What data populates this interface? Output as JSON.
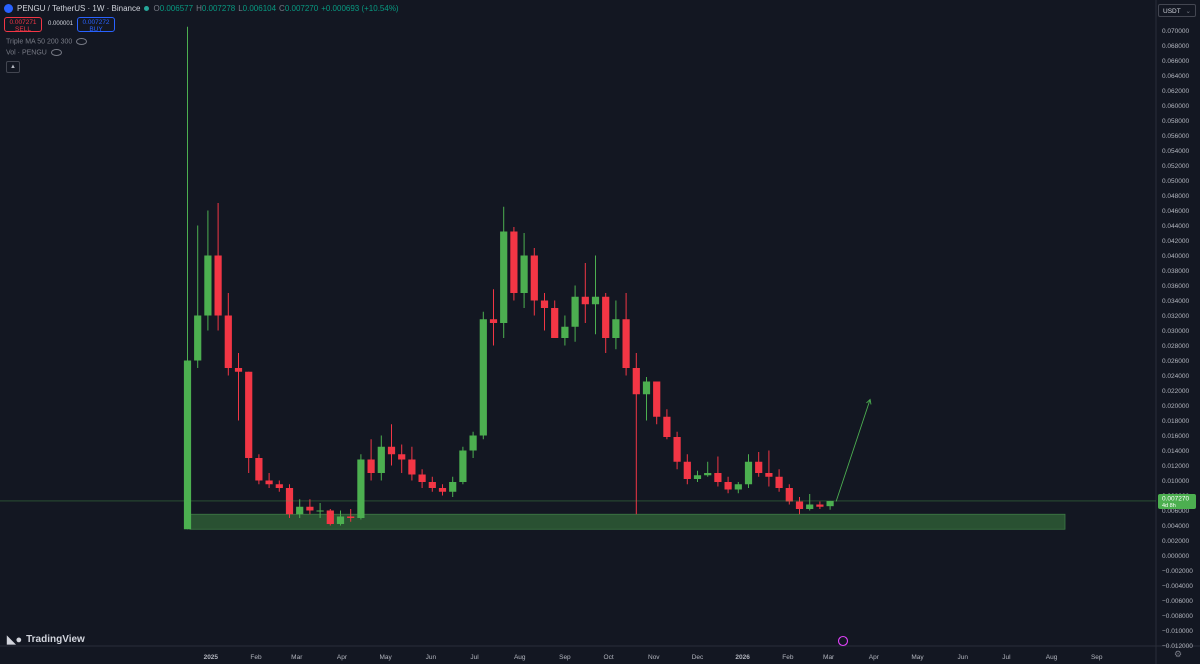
{
  "header": {
    "symbol": "PENGU / TetherUS · 1W · Binance",
    "o_label": "O",
    "o": "0.006577",
    "h_label": "H",
    "h": "0.007278",
    "l_label": "L",
    "l": "0.006104",
    "c_label": "C",
    "c": "0.007270",
    "change": "+0.000693 (+10.54%)"
  },
  "trade": {
    "sell_price": "0.007271",
    "sell_label": "SELL",
    "spread": "0.000001",
    "buy_price": "0.007272",
    "buy_label": "BUY"
  },
  "indicators": {
    "ma": "Triple MA 50 200 300",
    "vol": "Vol · PENGU"
  },
  "currency": "USDT",
  "brand": "TradingView",
  "price_tag": {
    "price": "0.007270",
    "countdown": "4d 8h"
  },
  "colors": {
    "up": "#4caf50",
    "down": "#f23645",
    "zone": "#2e5c35",
    "background": "#131722"
  },
  "chart_data": {
    "type": "candlestick",
    "interval": "1W",
    "ylim": [
      -0.012,
      0.071
    ],
    "y_ticks": [
      "0.070000",
      "0.068000",
      "0.066000",
      "0.064000",
      "0.062000",
      "0.060000",
      "0.058000",
      "0.056000",
      "0.054000",
      "0.052000",
      "0.050000",
      "0.048000",
      "0.046000",
      "0.044000",
      "0.042000",
      "0.040000",
      "0.038000",
      "0.036000",
      "0.034000",
      "0.032000",
      "0.030000",
      "0.028000",
      "0.026000",
      "0.024000",
      "0.022000",
      "0.020000",
      "0.018000",
      "0.016000",
      "0.014000",
      "0.012000",
      "0.010000",
      "0.008000",
      "0.006000",
      "0.004000",
      "0.002000",
      "0.000000",
      "−0.002000",
      "−0.004000",
      "−0.006000",
      "−0.008000",
      "−0.010000",
      "−0.012000"
    ],
    "x_ticks": [
      "2025",
      "Feb",
      "Mar",
      "Apr",
      "May",
      "Jun",
      "Jul",
      "Aug",
      "Sep",
      "Oct",
      "Nov",
      "Dec",
      "2026",
      "Feb",
      "Mar",
      "Apr",
      "May",
      "Jun",
      "Jul",
      "Aug",
      "Sep"
    ],
    "x_start": "2024-12-16",
    "x_end": "2026-09-28",
    "candles": [
      {
        "o": 0.0035,
        "h": 0.0705,
        "l": 0.0035,
        "c": 0.026
      },
      {
        "o": 0.026,
        "h": 0.044,
        "l": 0.025,
        "c": 0.032
      },
      {
        "o": 0.032,
        "h": 0.046,
        "l": 0.03,
        "c": 0.04
      },
      {
        "o": 0.04,
        "h": 0.047,
        "l": 0.03,
        "c": 0.032
      },
      {
        "o": 0.032,
        "h": 0.035,
        "l": 0.024,
        "c": 0.025
      },
      {
        "o": 0.025,
        "h": 0.027,
        "l": 0.018,
        "c": 0.0245
      },
      {
        "o": 0.0245,
        "h": 0.0245,
        "l": 0.011,
        "c": 0.013
      },
      {
        "o": 0.013,
        "h": 0.0135,
        "l": 0.0095,
        "c": 0.01
      },
      {
        "o": 0.01,
        "h": 0.011,
        "l": 0.009,
        "c": 0.0095
      },
      {
        "o": 0.0095,
        "h": 0.01,
        "l": 0.0085,
        "c": 0.009
      },
      {
        "o": 0.009,
        "h": 0.0095,
        "l": 0.005,
        "c": 0.0055
      },
      {
        "o": 0.0055,
        "h": 0.0075,
        "l": 0.005,
        "c": 0.0065
      },
      {
        "o": 0.0065,
        "h": 0.0075,
        "l": 0.0055,
        "c": 0.006
      },
      {
        "o": 0.006,
        "h": 0.007,
        "l": 0.005,
        "c": 0.006
      },
      {
        "o": 0.006,
        "h": 0.0062,
        "l": 0.004,
        "c": 0.0042
      },
      {
        "o": 0.0042,
        "h": 0.006,
        "l": 0.004,
        "c": 0.0052
      },
      {
        "o": 0.0052,
        "h": 0.0062,
        "l": 0.0045,
        "c": 0.005
      },
      {
        "o": 0.005,
        "h": 0.0135,
        "l": 0.0048,
        "c": 0.0128
      },
      {
        "o": 0.0128,
        "h": 0.0155,
        "l": 0.01,
        "c": 0.011
      },
      {
        "o": 0.011,
        "h": 0.016,
        "l": 0.01,
        "c": 0.0145
      },
      {
        "o": 0.0145,
        "h": 0.0175,
        "l": 0.012,
        "c": 0.0135
      },
      {
        "o": 0.0135,
        "h": 0.0148,
        "l": 0.011,
        "c": 0.0128
      },
      {
        "o": 0.0128,
        "h": 0.0145,
        "l": 0.01,
        "c": 0.0108
      },
      {
        "o": 0.0108,
        "h": 0.0115,
        "l": 0.009,
        "c": 0.0098
      },
      {
        "o": 0.0098,
        "h": 0.0105,
        "l": 0.0085,
        "c": 0.009
      },
      {
        "o": 0.009,
        "h": 0.0095,
        "l": 0.008,
        "c": 0.0085
      },
      {
        "o": 0.0085,
        "h": 0.0105,
        "l": 0.0078,
        "c": 0.0098
      },
      {
        "o": 0.0098,
        "h": 0.0145,
        "l": 0.0095,
        "c": 0.014
      },
      {
        "o": 0.014,
        "h": 0.0165,
        "l": 0.013,
        "c": 0.016
      },
      {
        "o": 0.016,
        "h": 0.0325,
        "l": 0.0155,
        "c": 0.0315
      },
      {
        "o": 0.0315,
        "h": 0.0355,
        "l": 0.028,
        "c": 0.031
      },
      {
        "o": 0.031,
        "h": 0.0465,
        "l": 0.029,
        "c": 0.0432
      },
      {
        "o": 0.0432,
        "h": 0.0438,
        "l": 0.034,
        "c": 0.035
      },
      {
        "o": 0.035,
        "h": 0.043,
        "l": 0.033,
        "c": 0.04
      },
      {
        "o": 0.04,
        "h": 0.041,
        "l": 0.032,
        "c": 0.034
      },
      {
        "o": 0.034,
        "h": 0.035,
        "l": 0.03,
        "c": 0.033
      },
      {
        "o": 0.033,
        "h": 0.034,
        "l": 0.029,
        "c": 0.029
      },
      {
        "o": 0.029,
        "h": 0.032,
        "l": 0.028,
        "c": 0.0305
      },
      {
        "o": 0.0305,
        "h": 0.036,
        "l": 0.0285,
        "c": 0.0345
      },
      {
        "o": 0.0345,
        "h": 0.039,
        "l": 0.031,
        "c": 0.0335
      },
      {
        "o": 0.0335,
        "h": 0.04,
        "l": 0.0295,
        "c": 0.0345
      },
      {
        "o": 0.0345,
        "h": 0.035,
        "l": 0.027,
        "c": 0.029
      },
      {
        "o": 0.029,
        "h": 0.034,
        "l": 0.0275,
        "c": 0.0315
      },
      {
        "o": 0.0315,
        "h": 0.035,
        "l": 0.024,
        "c": 0.025
      },
      {
        "o": 0.025,
        "h": 0.027,
        "l": 0.0055,
        "c": 0.0215
      },
      {
        "o": 0.0215,
        "h": 0.0238,
        "l": 0.018,
        "c": 0.0232
      },
      {
        "o": 0.0232,
        "h": 0.023,
        "l": 0.0175,
        "c": 0.0185
      },
      {
        "o": 0.0185,
        "h": 0.0195,
        "l": 0.0155,
        "c": 0.0158
      },
      {
        "o": 0.0158,
        "h": 0.0165,
        "l": 0.0115,
        "c": 0.0125
      },
      {
        "o": 0.0125,
        "h": 0.0135,
        "l": 0.0095,
        "c": 0.0102
      },
      {
        "o": 0.0102,
        "h": 0.0113,
        "l": 0.0098,
        "c": 0.0107
      },
      {
        "o": 0.0107,
        "h": 0.0125,
        "l": 0.0105,
        "c": 0.011
      },
      {
        "o": 0.011,
        "h": 0.0132,
        "l": 0.0092,
        "c": 0.0098
      },
      {
        "o": 0.0098,
        "h": 0.0105,
        "l": 0.0083,
        "c": 0.0088
      },
      {
        "o": 0.0088,
        "h": 0.0098,
        "l": 0.0083,
        "c": 0.0095
      },
      {
        "o": 0.0095,
        "h": 0.0135,
        "l": 0.009,
        "c": 0.0125
      },
      {
        "o": 0.0125,
        "h": 0.0138,
        "l": 0.0105,
        "c": 0.011
      },
      {
        "o": 0.011,
        "h": 0.014,
        "l": 0.0092,
        "c": 0.0105
      },
      {
        "o": 0.0105,
        "h": 0.0115,
        "l": 0.0085,
        "c": 0.009
      },
      {
        "o": 0.009,
        "h": 0.0095,
        "l": 0.0068,
        "c": 0.0072
      },
      {
        "o": 0.0072,
        "h": 0.0078,
        "l": 0.0055,
        "c": 0.0062
      },
      {
        "o": 0.0062,
        "h": 0.0082,
        "l": 0.006,
        "c": 0.0068
      },
      {
        "o": 0.0068,
        "h": 0.0072,
        "l": 0.0062,
        "c": 0.0065
      },
      {
        "o": 0.006577,
        "h": 0.007278,
        "l": 0.006104,
        "c": 0.00727
      }
    ],
    "support_zone": {
      "from": 0.0035,
      "to": 0.0055
    },
    "projection": {
      "from_price": 0.0072,
      "to_price": 0.0208
    },
    "current_price": 0.00727
  }
}
